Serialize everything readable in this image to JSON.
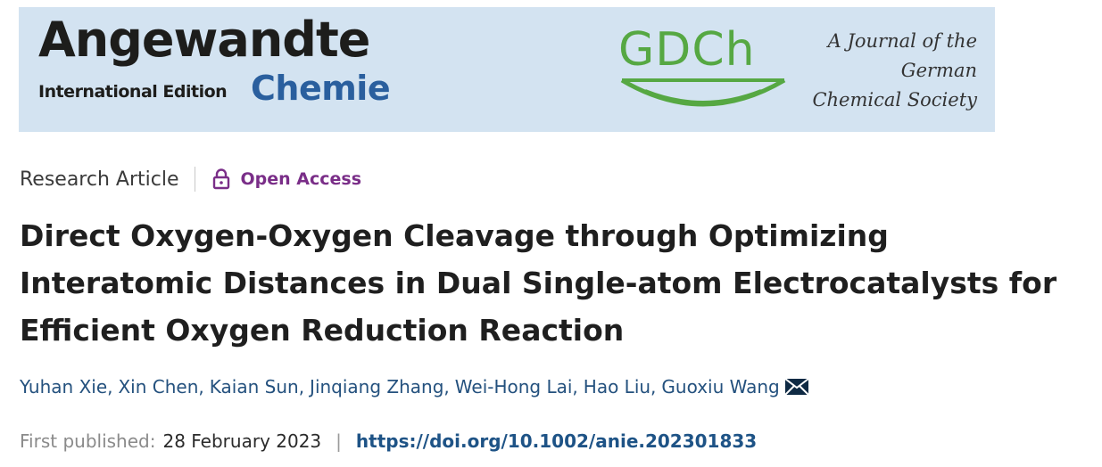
{
  "banner": {
    "brand_main": "Angewandte",
    "brand_edition": "International Edition",
    "brand_chemie": "Chemie",
    "society_logo": "GDCh",
    "journal_tagline": [
      "A Journal of the",
      "German",
      "Chemical Society"
    ],
    "colors": {
      "background": "#d3e3f1",
      "chemie": "#2a5f9e",
      "gdch": "#56a843"
    }
  },
  "article": {
    "type": "Research Article",
    "access_label": "Open Access",
    "access_icon": "lock-icon",
    "title": "Direct Oxygen-Oxygen Cleavage through Optimizing Interatomic Distances in Dual Single-atom Electrocatalysts for Efficient Oxygen Reduction Reaction",
    "authors": [
      "Yuhan Xie",
      "Xin Chen",
      "Kaian Sun",
      "Jinqiang Zhang",
      "Wei-Hong Lai",
      "Hao Liu",
      "Guoxiu Wang"
    ],
    "corresponding_icon": "envelope-icon",
    "published_label": "First published:",
    "published_date": "28 February 2023",
    "separator": "|",
    "doi": "https://doi.org/10.1002/anie.202301833",
    "colors": {
      "open_access": "#7a2e88",
      "links": "#24517e"
    }
  }
}
